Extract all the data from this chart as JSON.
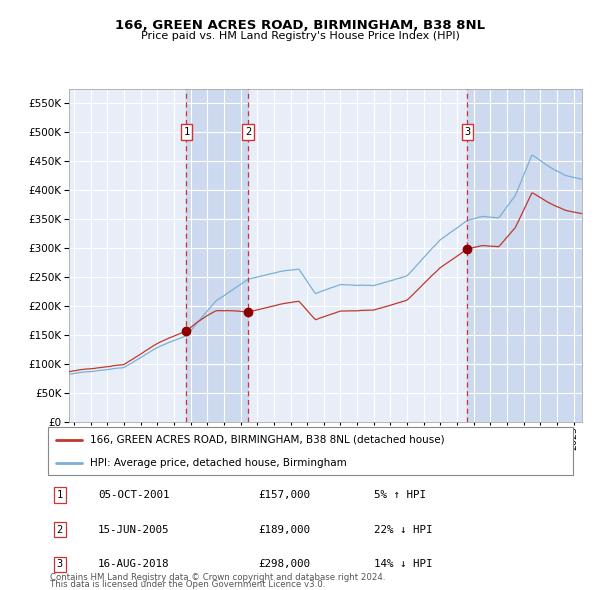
{
  "title": "166, GREEN ACRES ROAD, BIRMINGHAM, B38 8NL",
  "subtitle": "Price paid vs. HM Land Registry's House Price Index (HPI)",
  "sales": [
    {
      "num": 1,
      "date_str": "05-OCT-2001",
      "date_x": 2001.75,
      "price": 157000,
      "pct": "5%",
      "dir": "↑"
    },
    {
      "num": 2,
      "date_str": "15-JUN-2005",
      "date_x": 2005.45,
      "price": 189000,
      "pct": "22%",
      "dir": "↓"
    },
    {
      "num": 3,
      "date_str": "16-AUG-2018",
      "date_x": 2018.62,
      "price": 298000,
      "pct": "14%",
      "dir": "↓"
    }
  ],
  "legend_red": "166, GREEN ACRES ROAD, BIRMINGHAM, B38 8NL (detached house)",
  "legend_blue": "HPI: Average price, detached house, Birmingham",
  "footnote1": "Contains HM Land Registry data © Crown copyright and database right 2024.",
  "footnote2": "This data is licensed under the Open Government Licence v3.0.",
  "ylim": [
    0,
    575000
  ],
  "yticks": [
    0,
    50000,
    100000,
    150000,
    200000,
    250000,
    300000,
    350000,
    400000,
    450000,
    500000,
    550000
  ],
  "xlim_start": 1994.7,
  "xlim_end": 2025.5,
  "plot_bg": "#e8eef8",
  "grid_color": "#ffffff",
  "hpi_color": "#7ab0d4",
  "price_color": "#c0392b",
  "sale_marker_color": "#8b0000",
  "dashed_color": "#cc3333",
  "shade_color": "#cdd9ee"
}
